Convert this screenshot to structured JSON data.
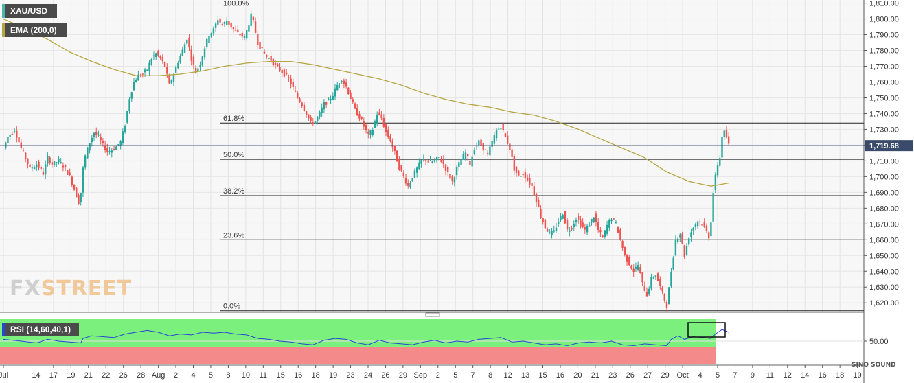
{
  "legend": {
    "symbol": "XAU/USD",
    "ema": "EMA (200,0)",
    "rsi": "RSI (14,60,40,1)",
    "symbol_color": "#4db6ac",
    "ema_color": "#b5a642"
  },
  "watermark": {
    "fx": "FX",
    "street": "STREET"
  },
  "brand": "SINO SOUND",
  "colors": {
    "up": "#26a69a",
    "down": "#ef5350",
    "ema_line": "#b5a642",
    "rsi_line": "#2a44d6",
    "rsi_upper_zone": "#7cf07c",
    "rsi_lower_zone": "#f48a8a",
    "current_price_line": "#2c3e6e",
    "current_price_label_bg": "#3a4a6b"
  },
  "chart_data": {
    "type": "candlestick",
    "title": "XAU/USD",
    "x_tick_labels": [
      "Jul",
      "14",
      "17",
      "19",
      "21",
      "22",
      "26",
      "28",
      "Aug",
      "2",
      "4",
      "5",
      "8",
      "10",
      "11",
      "15",
      "16",
      "18",
      "19",
      "23",
      "24",
      "26",
      "29",
      "Sep",
      "2",
      "5",
      "7",
      "8",
      "12",
      "13",
      "15",
      "16",
      "20",
      "21",
      "23",
      "26",
      "27",
      "29",
      "Oct",
      "4",
      "5",
      "7",
      "9",
      "11",
      "12",
      "14",
      "16",
      "18",
      "19"
    ],
    "y_tick_labels": [
      "1,810.00",
      "1,800.00",
      "1,790.00",
      "1,780.00",
      "1,770.00",
      "1,760.00",
      "1,750.00",
      "1,740.00",
      "1,730.00",
      "1,720.00",
      "1,710.00",
      "1,700.00",
      "1,690.00",
      "1,680.00",
      "1,670.00",
      "1,660.00",
      "1,650.00",
      "1,640.00",
      "1,630.00",
      "1,620.00"
    ],
    "ylim": [
      1614,
      1812
    ],
    "current_price": 1719.68,
    "current_price_label": "1,719.68",
    "fibonacci_levels": [
      {
        "label": "100.0%",
        "price": 1807
      },
      {
        "label": "61.8%",
        "price": 1734
      },
      {
        "label": "50.0%",
        "price": 1711
      },
      {
        "label": "38.2%",
        "price": 1688
      },
      {
        "label": "23.6%",
        "price": 1660
      },
      {
        "label": "0.0%",
        "price": 1615
      }
    ],
    "ohlc_path": [
      [
        0,
        1718
      ],
      [
        2,
        1725
      ],
      [
        5,
        1730
      ],
      [
        8,
        1718
      ],
      [
        10,
        1712
      ],
      [
        12,
        1705
      ],
      [
        15,
        1708
      ],
      [
        18,
        1702
      ],
      [
        20,
        1712
      ],
      [
        22,
        1708
      ],
      [
        25,
        1710
      ],
      [
        28,
        1705
      ],
      [
        30,
        1700
      ],
      [
        32,
        1692
      ],
      [
        34,
        1684
      ],
      [
        35,
        1690
      ],
      [
        36,
        1705
      ],
      [
        37,
        1713
      ],
      [
        39,
        1722
      ],
      [
        41,
        1728
      ],
      [
        43,
        1725
      ],
      [
        45,
        1720
      ],
      [
        47,
        1716
      ],
      [
        49,
        1717
      ],
      [
        51,
        1719
      ],
      [
        53,
        1722
      ],
      [
        55,
        1733
      ],
      [
        57,
        1750
      ],
      [
        59,
        1760
      ],
      [
        61,
        1764
      ],
      [
        63,
        1765
      ],
      [
        65,
        1768
      ],
      [
        67,
        1775
      ],
      [
        69,
        1778
      ],
      [
        71,
        1775
      ],
      [
        73,
        1770
      ],
      [
        75,
        1758
      ],
      [
        77,
        1765
      ],
      [
        79,
        1773
      ],
      [
        81,
        1780
      ],
      [
        83,
        1788
      ],
      [
        85,
        1775
      ],
      [
        87,
        1766
      ],
      [
        89,
        1772
      ],
      [
        91,
        1782
      ],
      [
        93,
        1790
      ],
      [
        95,
        1793
      ],
      [
        97,
        1800
      ],
      [
        99,
        1796
      ],
      [
        101,
        1799
      ],
      [
        103,
        1795
      ],
      [
        105,
        1792
      ],
      [
        107,
        1790
      ],
      [
        109,
        1788
      ],
      [
        111,
        1797
      ],
      [
        112,
        1802
      ],
      [
        113,
        1798
      ],
      [
        115,
        1785
      ],
      [
        117,
        1780
      ],
      [
        119,
        1776
      ],
      [
        121,
        1774
      ],
      [
        123,
        1770
      ],
      [
        125,
        1768
      ],
      [
        127,
        1765
      ],
      [
        129,
        1762
      ],
      [
        131,
        1756
      ],
      [
        133,
        1750
      ],
      [
        135,
        1746
      ],
      [
        137,
        1740
      ],
      [
        139,
        1734
      ],
      [
        141,
        1735
      ],
      [
        143,
        1740
      ],
      [
        145,
        1746
      ],
      [
        147,
        1748
      ],
      [
        149,
        1752
      ],
      [
        151,
        1758
      ],
      [
        153,
        1762
      ],
      [
        155,
        1757
      ],
      [
        157,
        1750
      ],
      [
        159,
        1742
      ],
      [
        161,
        1738
      ],
      [
        163,
        1732
      ],
      [
        165,
        1726
      ],
      [
        167,
        1730
      ],
      [
        169,
        1740
      ],
      [
        171,
        1737
      ],
      [
        173,
        1728
      ],
      [
        175,
        1723
      ],
      [
        177,
        1715
      ],
      [
        179,
        1706
      ],
      [
        181,
        1700
      ],
      [
        183,
        1694
      ],
      [
        185,
        1700
      ],
      [
        187,
        1705
      ],
      [
        189,
        1710
      ],
      [
        191,
        1711
      ],
      [
        193,
        1709
      ],
      [
        195,
        1710
      ],
      [
        197,
        1712
      ],
      [
        199,
        1708
      ],
      [
        201,
        1702
      ],
      [
        203,
        1697
      ],
      [
        205,
        1705
      ],
      [
        207,
        1711
      ],
      [
        209,
        1715
      ],
      [
        211,
        1708
      ],
      [
        213,
        1718
      ],
      [
        215,
        1722
      ],
      [
        217,
        1718
      ],
      [
        219,
        1714
      ],
      [
        221,
        1722
      ],
      [
        223,
        1729
      ],
      [
        225,
        1732
      ],
      [
        227,
        1725
      ],
      [
        229,
        1718
      ],
      [
        231,
        1705
      ],
      [
        233,
        1700
      ],
      [
        235,
        1702
      ],
      [
        237,
        1698
      ],
      [
        239,
        1694
      ],
      [
        241,
        1685
      ],
      [
        243,
        1675
      ],
      [
        245,
        1668
      ],
      [
        247,
        1664
      ],
      [
        249,
        1665
      ],
      [
        251,
        1672
      ],
      [
        253,
        1677
      ],
      [
        255,
        1666
      ],
      [
        257,
        1668
      ],
      [
        259,
        1674
      ],
      [
        261,
        1670
      ],
      [
        263,
        1666
      ],
      [
        265,
        1670
      ],
      [
        267,
        1675
      ],
      [
        269,
        1666
      ],
      [
        271,
        1661
      ],
      [
        273,
        1669
      ],
      [
        275,
        1674
      ],
      [
        277,
        1670
      ],
      [
        279,
        1660
      ],
      [
        281,
        1650
      ],
      [
        283,
        1645
      ],
      [
        285,
        1640
      ],
      [
        287,
        1644
      ],
      [
        289,
        1632
      ],
      [
        291,
        1625
      ],
      [
        293,
        1635
      ],
      [
        295,
        1638
      ],
      [
        297,
        1630
      ],
      [
        299,
        1622
      ],
      [
        300,
        1618
      ],
      [
        302,
        1640
      ],
      [
        304,
        1660
      ],
      [
        306,
        1664
      ],
      [
        308,
        1650
      ],
      [
        310,
        1662
      ],
      [
        312,
        1668
      ],
      [
        314,
        1672
      ],
      [
        316,
        1670
      ],
      [
        318,
        1665
      ],
      [
        319,
        1662
      ],
      [
        320,
        1672
      ],
      [
        321,
        1690
      ],
      [
        322,
        1700
      ],
      [
        323,
        1708
      ],
      [
        324,
        1712
      ],
      [
        325,
        1726
      ],
      [
        326,
        1728
      ],
      [
        327,
        1725
      ],
      [
        328,
        1720
      ]
    ],
    "ema_200": [
      [
        0,
        1800
      ],
      [
        10,
        1794
      ],
      [
        20,
        1787
      ],
      [
        30,
        1779
      ],
      [
        40,
        1773
      ],
      [
        50,
        1768
      ],
      [
        60,
        1764
      ],
      [
        70,
        1764
      ],
      [
        80,
        1765
      ],
      [
        90,
        1767
      ],
      [
        100,
        1770
      ],
      [
        110,
        1772
      ],
      [
        120,
        1773
      ],
      [
        130,
        1773
      ],
      [
        140,
        1771
      ],
      [
        150,
        1768
      ],
      [
        160,
        1765
      ],
      [
        170,
        1762
      ],
      [
        180,
        1758
      ],
      [
        190,
        1753
      ],
      [
        200,
        1749
      ],
      [
        210,
        1746
      ],
      [
        220,
        1744
      ],
      [
        230,
        1741
      ],
      [
        240,
        1739
      ],
      [
        250,
        1735
      ],
      [
        260,
        1730
      ],
      [
        270,
        1724
      ],
      [
        280,
        1718
      ],
      [
        290,
        1712
      ],
      [
        300,
        1703
      ],
      [
        310,
        1697
      ],
      [
        320,
        1694
      ],
      [
        328,
        1696
      ]
    ],
    "rsi": {
      "label": "RSI (14,60,40,1)",
      "tick_labels": [
        "50.00"
      ],
      "ylim": [
        25,
        75
      ],
      "overbought": 60,
      "oversold": 40,
      "path": [
        [
          0,
          52
        ],
        [
          8,
          50
        ],
        [
          15,
          48
        ],
        [
          20,
          52
        ],
        [
          25,
          50
        ],
        [
          30,
          49
        ],
        [
          35,
          48
        ],
        [
          36,
          53
        ],
        [
          40,
          56
        ],
        [
          45,
          55
        ],
        [
          50,
          54
        ],
        [
          55,
          58
        ],
        [
          60,
          60
        ],
        [
          65,
          62
        ],
        [
          70,
          60
        ],
        [
          75,
          56
        ],
        [
          80,
          58
        ],
        [
          85,
          57
        ],
        [
          90,
          60
        ],
        [
          95,
          59
        ],
        [
          100,
          60
        ],
        [
          105,
          58
        ],
        [
          110,
          57
        ],
        [
          115,
          53
        ],
        [
          120,
          52
        ],
        [
          125,
          50
        ],
        [
          130,
          49
        ],
        [
          135,
          47
        ],
        [
          140,
          46
        ],
        [
          145,
          51
        ],
        [
          150,
          53
        ],
        [
          155,
          52
        ],
        [
          160,
          48
        ],
        [
          165,
          46
        ],
        [
          170,
          51
        ],
        [
          175,
          48
        ],
        [
          180,
          47
        ],
        [
          185,
          46
        ],
        [
          190,
          49
        ],
        [
          195,
          51
        ],
        [
          200,
          48
        ],
        [
          205,
          50
        ],
        [
          210,
          49
        ],
        [
          215,
          52
        ],
        [
          220,
          53
        ],
        [
          225,
          54
        ],
        [
          230,
          49
        ],
        [
          235,
          50
        ],
        [
          240,
          48
        ],
        [
          245,
          46
        ],
        [
          250,
          47
        ],
        [
          255,
          45
        ],
        [
          260,
          48
        ],
        [
          265,
          49
        ],
        [
          270,
          48
        ],
        [
          275,
          50
        ],
        [
          280,
          46
        ],
        [
          285,
          45
        ],
        [
          290,
          47
        ],
        [
          295,
          46
        ],
        [
          300,
          45
        ],
        [
          302,
          52
        ],
        [
          305,
          56
        ],
        [
          308,
          52
        ],
        [
          312,
          55
        ],
        [
          316,
          54
        ],
        [
          320,
          53
        ],
        [
          322,
          58
        ],
        [
          325,
          63
        ],
        [
          328,
          60
        ]
      ]
    }
  }
}
